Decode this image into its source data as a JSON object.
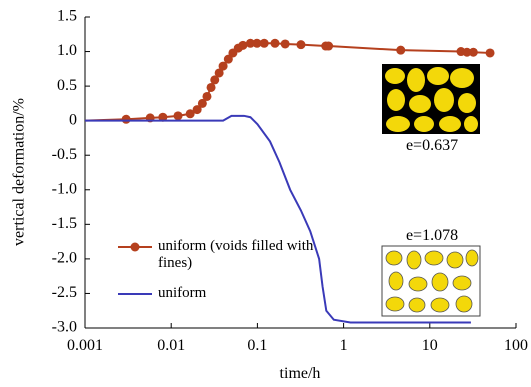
{
  "chart_data": {
    "type": "line",
    "x_label": "time/h",
    "y_label": "vertical deformation/%",
    "log_x": true,
    "xlim": [
      0.001,
      100
    ],
    "xticks": [
      0.001,
      0.01,
      0.1,
      1,
      10,
      100
    ],
    "ylim": [
      -3.0,
      1.5
    ],
    "yticks": [
      1.5,
      {
        "value": 1,
        "label": "1.0"
      },
      0.5,
      0,
      -0.5,
      {
        "value": -1,
        "label": "-1.0"
      },
      -1.5,
      {
        "value": -2,
        "label": "-2.0"
      },
      -2.5,
      {
        "value": -3,
        "label": "-3.0"
      }
    ],
    "annotations": [
      "e=0.637",
      "e=1.078"
    ],
    "series": [
      {
        "name": "uniform (voids filled with fines)",
        "color": "#b5401e",
        "marker": true,
        "x": [
          0.001,
          0.003,
          0.0057,
          0.008,
          0.012,
          0.0166,
          0.02,
          0.023,
          0.026,
          0.029,
          0.032,
          0.036,
          0.04,
          0.046,
          0.052,
          0.06,
          0.068,
          0.083,
          0.099,
          0.12,
          0.16,
          0.21,
          0.32,
          0.62,
          0.67,
          4.6,
          23,
          27,
          32,
          50
        ],
        "values": [
          0,
          0.02,
          0.04,
          0.05,
          0.07,
          0.1,
          0.16,
          0.25,
          0.35,
          0.48,
          0.59,
          0.69,
          0.79,
          0.89,
          0.98,
          1.05,
          1.09,
          1.12,
          1.12,
          1.12,
          1.12,
          1.11,
          1.1,
          1.08,
          1.08,
          1.02,
          1.0,
          0.99,
          0.99,
          0.98
        ]
      },
      {
        "name": "uniform",
        "color": "#3a3ab8",
        "marker": false,
        "x": [
          0.001,
          0.04,
          0.05,
          0.07,
          0.083,
          0.1,
          0.14,
          0.18,
          0.24,
          0.32,
          0.41,
          0.52,
          0.57,
          0.63,
          0.77,
          1.2,
          4.6,
          30
        ],
        "values": [
          0,
          0,
          0.07,
          0.07,
          0.05,
          -0.05,
          -0.3,
          -0.6,
          -1.0,
          -1.3,
          -1.6,
          -2.0,
          -2.4,
          -2.75,
          -2.88,
          -2.92,
          -2.92,
          -2.92
        ]
      }
    ]
  }
}
